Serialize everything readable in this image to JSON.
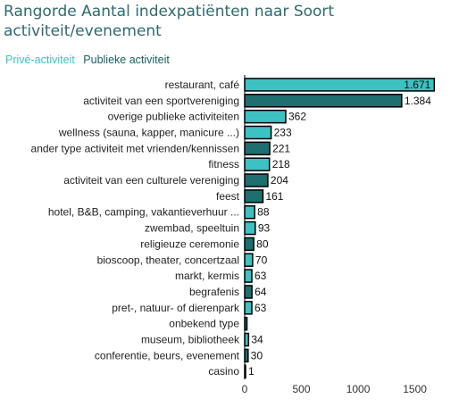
{
  "title_line1": "Rangorde Aantal indexpatiënten naar Soort",
  "title_line2": "activiteit/evenement",
  "legend": [
    {
      "label": "Privé-activiteit",
      "color": "#3ec1c1"
    },
    {
      "label": "Publieke activiteit",
      "color": "#1a5f5f"
    }
  ],
  "colors": {
    "prive": "#3ec1c1",
    "publiek": "#1e6f6f",
    "outline": "#000000"
  },
  "chart_data": {
    "type": "bar",
    "orientation": "horizontal",
    "title": "Rangorde Aantal indexpatiënten naar Soort activiteit/evenement",
    "xlim": [
      0,
      1700
    ],
    "xticks": [
      0,
      500,
      1000,
      1500
    ],
    "categories": [
      "restaurant, café",
      "activiteit van een sportvereniging",
      "overige publieke activiteiten",
      "wellness (sauna, kapper, manicure ...)",
      "ander type activiteit met vrienden/kennissen",
      "fitness",
      "activiteit van een culturele vereniging",
      "feest",
      "hotel, B&B, camping, vakantieverhuur ...",
      "zwembad, speeltuin",
      "religieuze ceremonie",
      "bioscoop, theater, concertzaal",
      "markt, kermis",
      "begrafenis",
      "pret-, natuur- of dierenpark",
      "onbekend type",
      "museum, bibliotheek",
      "conferentie, beurs, evenement",
      "casino"
    ],
    "values": [
      1671,
      1384,
      362,
      233,
      221,
      218,
      204,
      161,
      88,
      93,
      80,
      70,
      63,
      64,
      63,
      20,
      34,
      30,
      1
    ],
    "value_labels": [
      "1.671",
      "1.384",
      "362",
      "233",
      "221",
      "218",
      "204",
      "161",
      "88",
      "93",
      "80",
      "70",
      "63",
      "64",
      "63",
      "",
      "34",
      "30",
      "1"
    ],
    "groups": [
      "prive",
      "publiek",
      "prive",
      "prive",
      "publiek",
      "prive",
      "publiek",
      "publiek",
      "prive",
      "prive",
      "publiek",
      "prive",
      "prive",
      "publiek",
      "prive",
      "publiek",
      "prive",
      "publiek",
      "prive"
    ],
    "legend_position": "top-left",
    "grid": false
  }
}
